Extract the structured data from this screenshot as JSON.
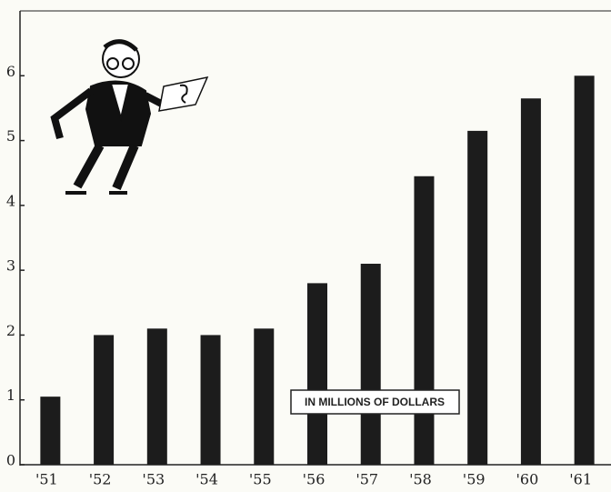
{
  "chart_data": {
    "type": "bar",
    "annotation": "IN MILLIONS OF DOLLARS",
    "categories": [
      "'51",
      "'52",
      "'53",
      "'54",
      "'55",
      "'56",
      "'57",
      "'58",
      "'59",
      "'60",
      "'61"
    ],
    "values": [
      1.05,
      2.0,
      2.1,
      2.0,
      2.1,
      2.8,
      3.1,
      4.45,
      5.15,
      5.65,
      6.0
    ],
    "color": "#1c1c1c",
    "ylim": [
      0,
      7
    ],
    "yticks": [
      0,
      1,
      2,
      3,
      4,
      5,
      6
    ],
    "grid": false
  }
}
